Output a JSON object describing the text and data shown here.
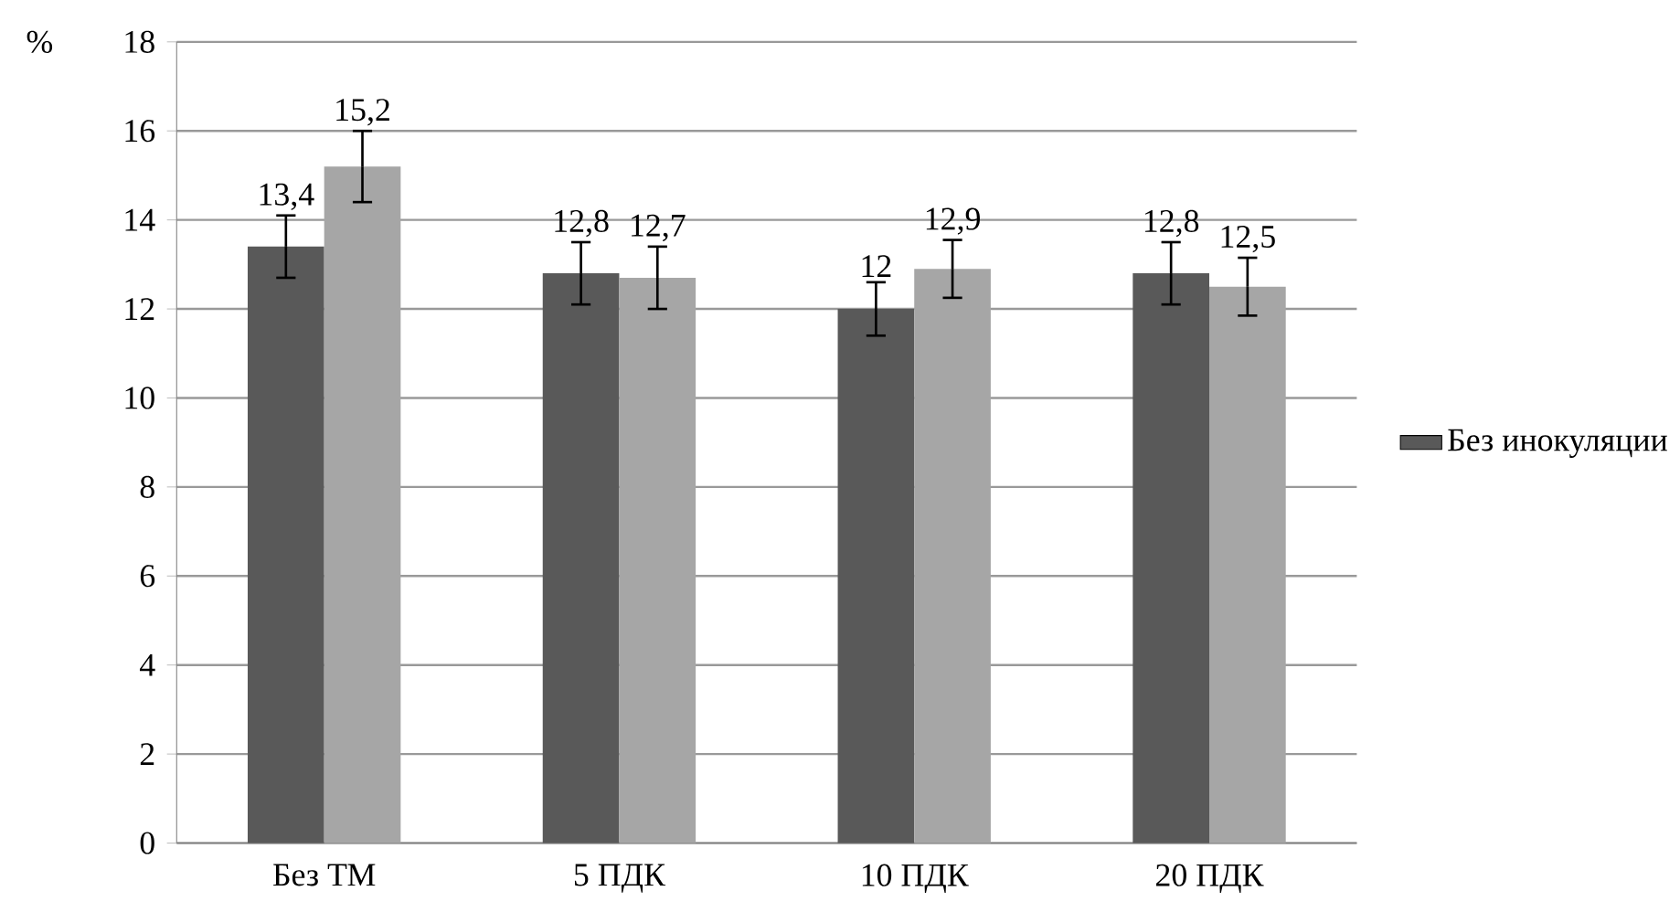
{
  "chart_data": {
    "type": "bar",
    "ylabel": "%",
    "categories": [
      "Без ТМ",
      "5 ПДК",
      "10 ПДК",
      "20 ПДК"
    ],
    "series": [
      {
        "name": "Без инокуляции",
        "color": "#595959",
        "values": [
          13.4,
          12.8,
          12,
          12.8
        ],
        "errors": [
          0.7,
          0.7,
          0.6,
          0.7
        ],
        "value_labels": [
          "13,4",
          "12,8",
          "12",
          "12,8"
        ]
      },
      {
        "color": "#a6a6a6",
        "values": [
          15.2,
          12.7,
          12.9,
          12.5
        ],
        "errors": [
          0.8,
          0.7,
          0.65,
          0.65
        ],
        "value_labels": [
          "15,2",
          "12,7",
          "12,9",
          "12,5"
        ]
      }
    ],
    "ylim": [
      0,
      18
    ],
    "yticks": [
      0,
      2,
      4,
      6,
      8,
      10,
      12,
      14,
      16,
      18
    ],
    "grid": "y",
    "legend": "right"
  }
}
